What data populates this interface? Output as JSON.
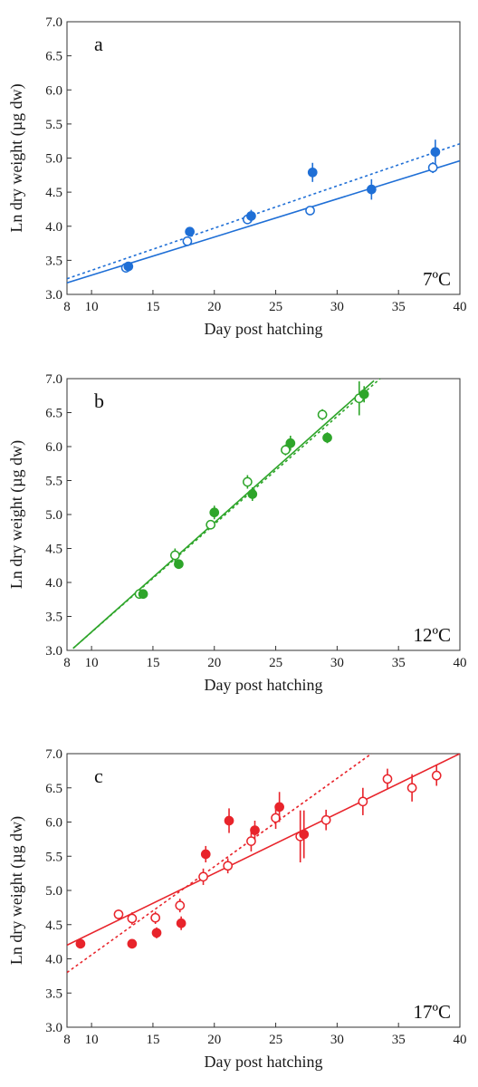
{
  "chart_data": [
    {
      "type": "scatter",
      "panel_label": "a",
      "temperature_label": "7ºC",
      "xlabel": "Day post hatching",
      "ylabel": "Ln dry weight (µg dw)",
      "xlim": [
        8,
        40
      ],
      "ylim": [
        3.0,
        7.0
      ],
      "x_ticks": [
        "8",
        "10",
        "15",
        "20",
        "25",
        "30",
        "35",
        "40"
      ],
      "y_ticks": [
        "3.0",
        "3.5",
        "4.0",
        "4.5",
        "5.0",
        "5.5",
        "6.0",
        "6.5",
        "7.0"
      ],
      "color": "#1f6fd6",
      "series": [
        {
          "marker": "open",
          "line": "solid",
          "x": [
            12.8,
            17.8,
            22.7,
            27.8,
            37.8
          ],
          "y": [
            3.39,
            3.78,
            4.1,
            4.23,
            4.86
          ],
          "yerr": [
            0.04,
            0.05,
            0.06,
            0.04,
            0.08
          ],
          "fit": [
            [
              8,
              3.17
            ],
            [
              40,
              4.96
            ]
          ]
        },
        {
          "marker": "filled",
          "line": "dotted",
          "x": [
            13.0,
            18.0,
            23.0,
            28.0,
            32.8,
            38.0
          ],
          "y": [
            3.41,
            3.92,
            4.15,
            4.79,
            4.54,
            5.09
          ],
          "yerr": [
            0.06,
            0.06,
            0.09,
            0.14,
            0.15,
            0.18
          ],
          "fit": [
            [
              8,
              3.23
            ],
            [
              40,
              5.21
            ]
          ]
        }
      ]
    },
    {
      "type": "scatter",
      "panel_label": "b",
      "temperature_label": "12ºC",
      "xlabel": "Day post hatching",
      "ylabel": "Ln dry weight (µg dw)",
      "xlim": [
        8,
        40
      ],
      "ylim": [
        3.0,
        7.0
      ],
      "x_ticks": [
        "8",
        "10",
        "15",
        "20",
        "25",
        "30",
        "35",
        "40"
      ],
      "y_ticks": [
        "3.0",
        "3.5",
        "4.0",
        "4.5",
        "5.0",
        "5.5",
        "6.0",
        "6.5",
        "7.0"
      ],
      "color": "#2ea52a",
      "series": [
        {
          "marker": "open",
          "line": "solid",
          "x": [
            13.9,
            16.8,
            19.7,
            22.7,
            25.8,
            28.8,
            31.8
          ],
          "y": [
            3.83,
            4.4,
            4.85,
            5.48,
            5.95,
            6.47,
            6.71
          ],
          "yerr": [
            0.03,
            0.1,
            0.06,
            0.1,
            0.08,
            0.08,
            0.25
          ],
          "fit": [
            [
              8.5,
              3.03
            ],
            [
              33,
              6.97
            ]
          ]
        },
        {
          "marker": "filled",
          "line": "dotted",
          "x": [
            14.2,
            17.1,
            20.0,
            23.1,
            26.2,
            29.2,
            32.2
          ],
          "y": [
            3.83,
            4.27,
            5.03,
            5.3,
            6.05,
            6.13,
            6.77
          ],
          "yerr": [
            0.03,
            0.07,
            0.1,
            0.1,
            0.11,
            0.08,
            0.12
          ],
          "fit": [
            [
              8.5,
              3.03
            ],
            [
              33.5,
              7.0
            ]
          ]
        }
      ]
    },
    {
      "type": "scatter",
      "panel_label": "c",
      "temperature_label": "17ºC",
      "xlabel": "Day post hatching",
      "ylabel": "Ln dry weight (µg dw)",
      "xlim": [
        8,
        40
      ],
      "ylim": [
        3.0,
        7.0
      ],
      "x_ticks": [
        "8",
        "10",
        "15",
        "20",
        "25",
        "30",
        "35",
        "40"
      ],
      "y_ticks": [
        "3.0",
        "3.5",
        "4.0",
        "4.5",
        "5.0",
        "5.5",
        "6.0",
        "6.5",
        "7.0"
      ],
      "color": "#e8242b",
      "series": [
        {
          "marker": "open",
          "line": "solid",
          "x": [
            12.2,
            13.3,
            15.2,
            17.2,
            19.1,
            21.1,
            23.0,
            25.0,
            27.0,
            29.1,
            32.1,
            34.1,
            36.1,
            38.1
          ],
          "y": [
            4.65,
            4.59,
            4.6,
            4.78,
            5.2,
            5.36,
            5.72,
            6.06,
            5.79,
            6.03,
            6.3,
            6.63,
            6.5,
            6.68
          ],
          "yerr": [
            0.07,
            0.09,
            0.09,
            0.1,
            0.12,
            0.11,
            0.15,
            0.16,
            0.38,
            0.15,
            0.2,
            0.15,
            0.2,
            0.15
          ],
          "fit": [
            [
              8,
              4.2
            ],
            [
              40,
              7.0
            ]
          ]
        },
        {
          "marker": "filled",
          "line": "dotted",
          "x": [
            9.1,
            13.3,
            15.3,
            17.3,
            19.3,
            21.2,
            23.3,
            25.3,
            27.3
          ],
          "y": [
            4.22,
            4.22,
            4.38,
            4.52,
            5.53,
            6.02,
            5.88,
            6.22,
            5.82
          ],
          "yerr": [
            0.03,
            0.05,
            0.08,
            0.1,
            0.12,
            0.18,
            0.14,
            0.22,
            0.35
          ],
          "fit": [
            [
              8,
              3.8
            ],
            [
              32.8,
              7.0
            ]
          ]
        }
      ]
    }
  ]
}
